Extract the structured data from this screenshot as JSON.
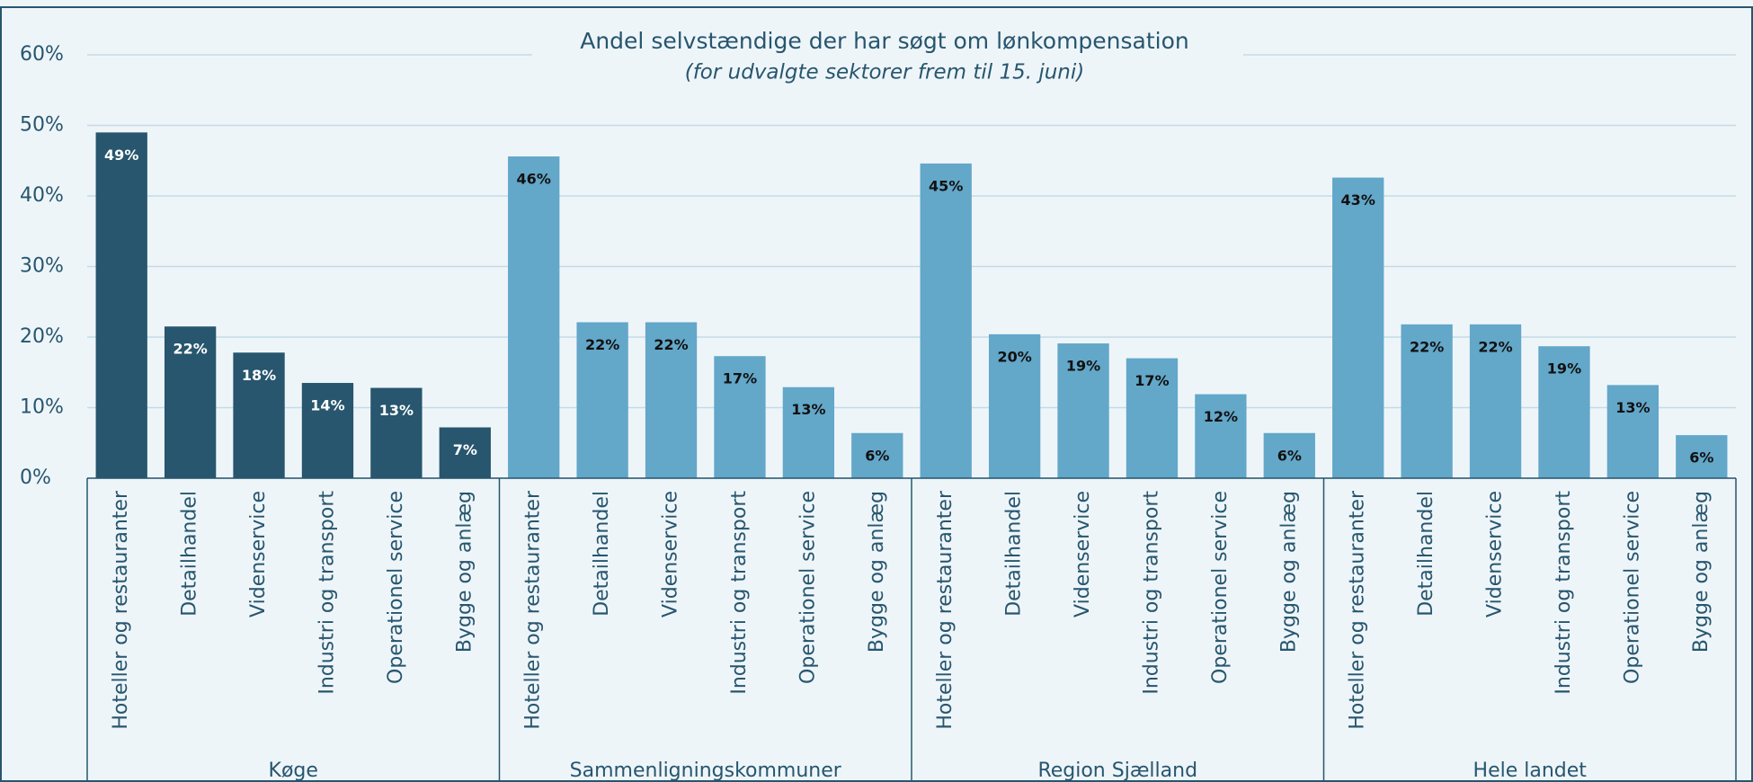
{
  "chart_data": {
    "type": "grouped_bar",
    "title": "Andel selvstændige der har søgt om lønkompensation",
    "subtitle": "(for udvalgte sektorer frem til 15. juni)",
    "categories": [
      "Hoteller og restauranter",
      "Detailhandel",
      "Videnservice",
      "Industri og transport",
      "Operationel service",
      "Bygge og anlæg"
    ],
    "series": [
      {
        "name": "Køge",
        "color": "#27566e",
        "label_color": "#ffffff",
        "values": [
          49,
          21.5,
          17.8,
          13.5,
          12.8,
          7.2
        ],
        "value_labels": [
          "49%",
          "22%",
          "18%",
          "14%",
          "13%",
          "7%"
        ]
      },
      {
        "name": "Sammenligningskommuner",
        "color": "#63a7c9",
        "label_color": "#111111",
        "values": [
          45.6,
          22.1,
          22.1,
          17.3,
          12.9,
          6.4
        ],
        "value_labels": [
          "46%",
          "22%",
          "22%",
          "17%",
          "13%",
          "6%"
        ]
      },
      {
        "name": "Region Sjælland",
        "color": "#63a7c9",
        "label_color": "#111111",
        "values": [
          44.6,
          20.4,
          19.1,
          17.0,
          11.9,
          6.4
        ],
        "value_labels": [
          "45%",
          "20%",
          "19%",
          "17%",
          "12%",
          "6%"
        ]
      },
      {
        "name": "Hele landet",
        "color": "#63a7c9",
        "label_color": "#111111",
        "values": [
          42.6,
          21.8,
          21.8,
          18.7,
          13.2,
          6.1
        ],
        "value_labels": [
          "43%",
          "22%",
          "22%",
          "19%",
          "13%",
          "6%"
        ]
      }
    ],
    "ylim": [
      0,
      60
    ],
    "yticks": [
      {
        "value": 0,
        "label": "0%"
      },
      {
        "value": 10,
        "label": "10%"
      },
      {
        "value": 20,
        "label": "20%"
      },
      {
        "value": 30,
        "label": "30%"
      },
      {
        "value": 40,
        "label": "40%"
      },
      {
        "value": 50,
        "label": "50%"
      },
      {
        "value": 60,
        "label": "60%"
      }
    ],
    "grid": true
  }
}
